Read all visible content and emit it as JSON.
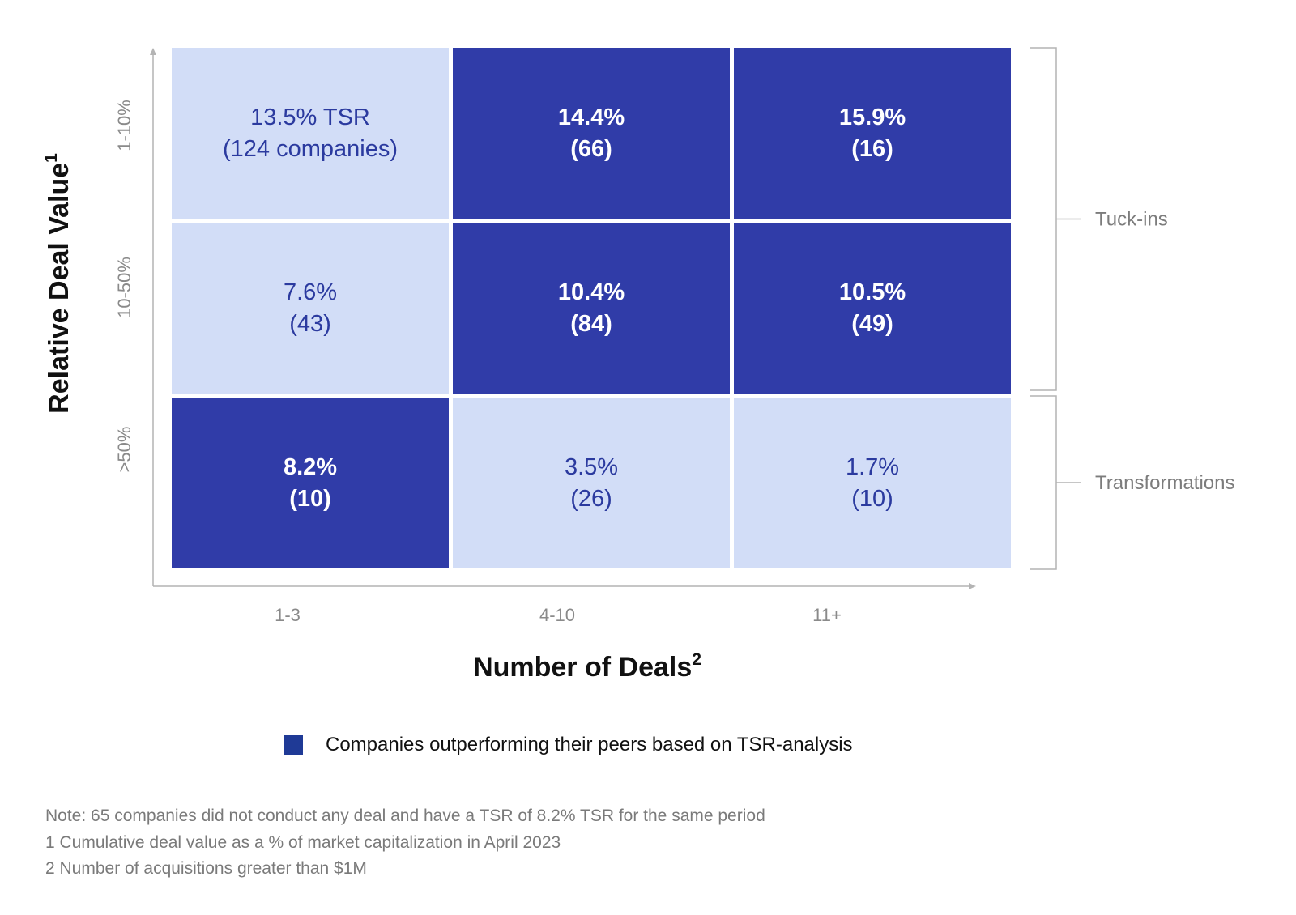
{
  "colors": {
    "outperform": "#303ca8",
    "neutral": "#d2ddf7",
    "text_on_dark": "#ffffff",
    "text_on_light": "#2b3a9f",
    "axis": "#b4b4b4",
    "legend_swatch": "#1f3a96"
  },
  "chart_data": {
    "type": "heatmap",
    "xlabel": "Number of Deals",
    "xlabel_sup": "2",
    "ylabel": "Relative Deal Value",
    "ylabel_sup": "1",
    "x_categories": [
      "1-3",
      "4-10",
      "11+"
    ],
    "y_categories": [
      "1-10%",
      "10-50%",
      ">50%"
    ],
    "cells": [
      [
        {
          "value": "13.5% TSR",
          "count": "(124 companies)",
          "outperform": false
        },
        {
          "value": "14.4%",
          "count": "(66)",
          "outperform": true
        },
        {
          "value": "15.9%",
          "count": "(16)",
          "outperform": true
        }
      ],
      [
        {
          "value": "7.6%",
          "count": "(43)",
          "outperform": false
        },
        {
          "value": "10.4%",
          "count": "(84)",
          "outperform": true
        },
        {
          "value": "10.5%",
          "count": "(49)",
          "outperform": true
        }
      ],
      [
        {
          "value": "8.2%",
          "count": "(10)",
          "outperform": true
        },
        {
          "value": "3.5%",
          "count": "(26)",
          "outperform": false
        },
        {
          "value": "1.7%",
          "count": "(10)",
          "outperform": false
        }
      ]
    ],
    "groups": [
      {
        "label": "Tuck-ins",
        "rows": [
          0,
          1
        ]
      },
      {
        "label": "Transformations",
        "rows": [
          2
        ]
      }
    ],
    "legend": "Companies outperforming their peers based on TSR-analysis"
  },
  "notes": [
    "Note: 65 companies did not conduct any deal and have a TSR of 8.2% TSR for the same period",
    "1 Cumulative deal value as a % of market capitalization in April 2023",
    "2 Number of acquisitions greater than $1M"
  ]
}
